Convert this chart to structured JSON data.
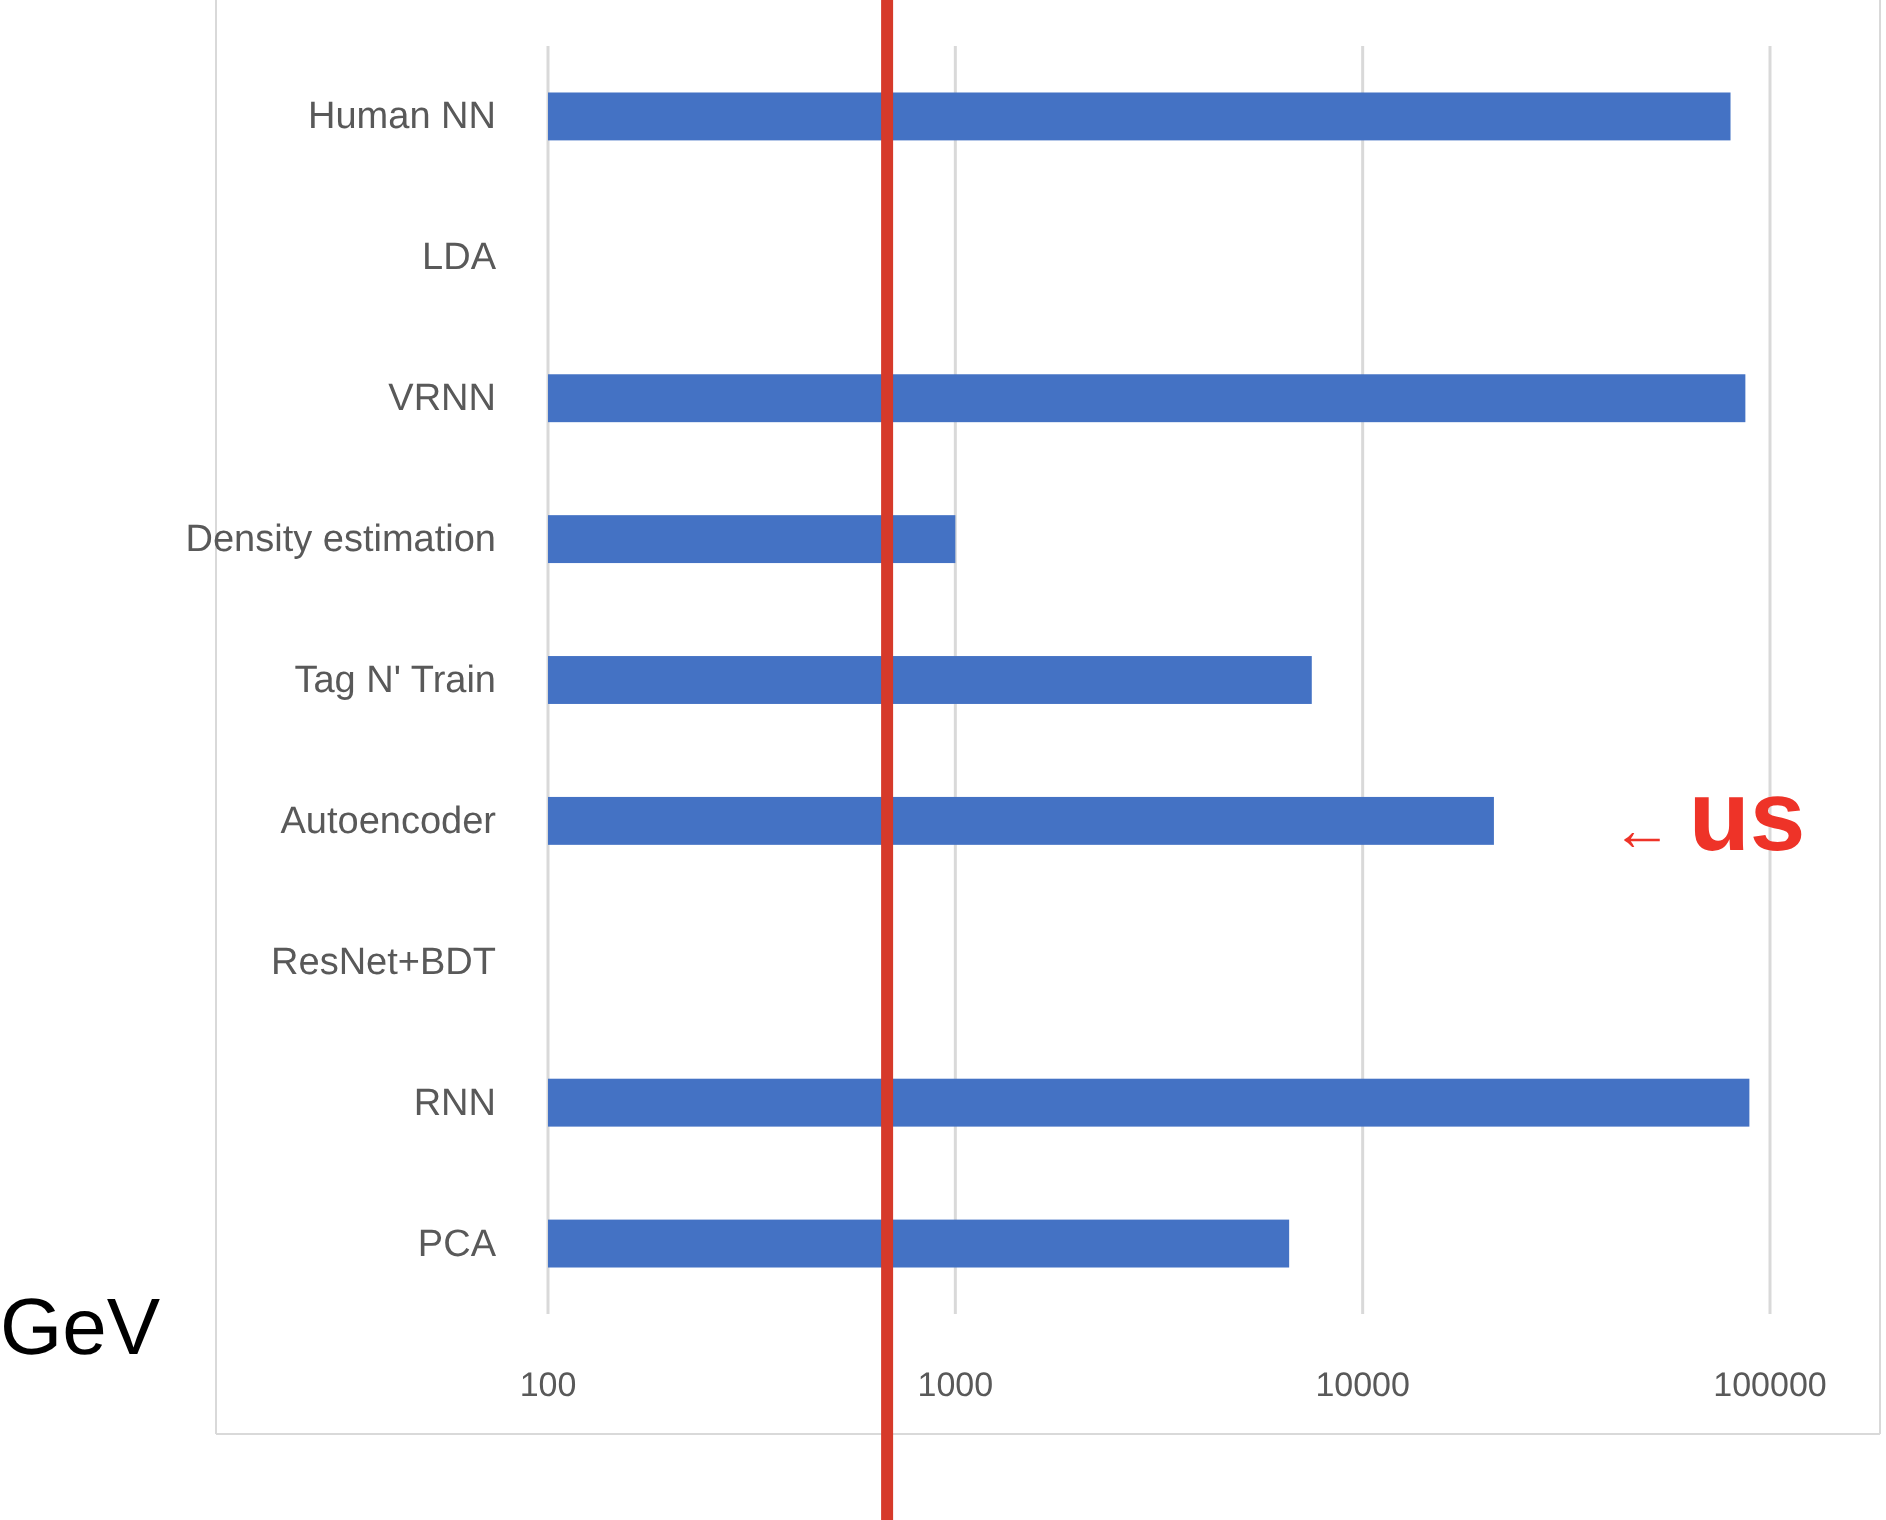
{
  "chart_data": {
    "type": "bar",
    "orientation": "horizontal",
    "categories": [
      "Human NN",
      "LDA",
      "VRNN",
      "Density estimation",
      "Tag N' Train",
      "Autoencoder",
      "ResNet+BDT",
      "RNN",
      "PCA"
    ],
    "values": [
      80000,
      null,
      87000,
      1000,
      7500,
      21000,
      null,
      89000,
      6600
    ],
    "color": "#4472c4",
    "log": "x",
    "xlim": [
      100,
      100000
    ],
    "xticks": [
      100,
      1000,
      10000,
      100000
    ],
    "grid": "x",
    "ref_lines": [
      {
        "axis": "x",
        "value": 680,
        "color": "#d63a2a"
      }
    ],
    "annotations": [
      "← us",
      "GeV"
    ]
  }
}
